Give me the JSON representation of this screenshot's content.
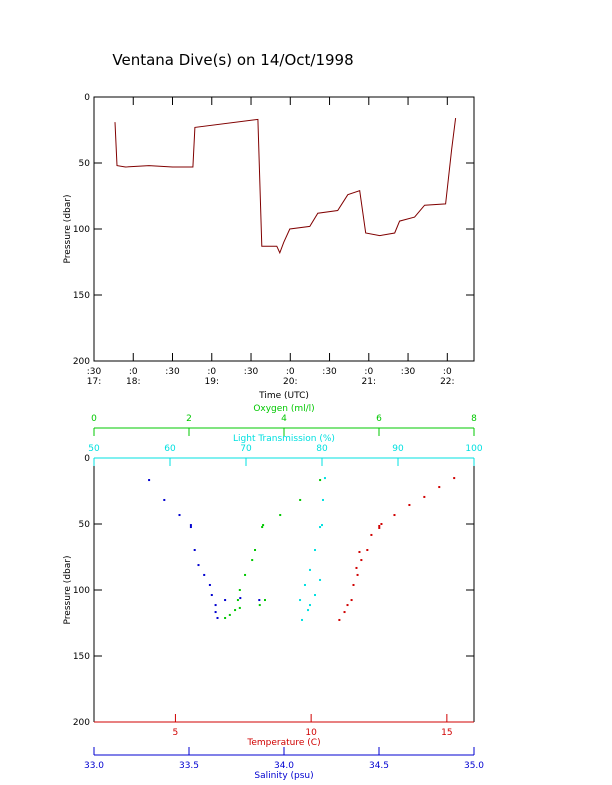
{
  "chart_data": [
    {
      "type": "line",
      "title": "Ventana Dive(s) on 14/Oct/1998",
      "xlabel": "Time (UTC)",
      "ylabel": "Pressure (dbar)",
      "color": "#800000",
      "y_inverted": true,
      "xlim": [
        17.5,
        22.34
      ],
      "xticks": [
        {
          "value": 17.5,
          "label": ":30\n17:"
        },
        {
          "value": 18,
          "label": ":0\n18:"
        },
        {
          "value": 18.5,
          "label": ":30"
        },
        {
          "value": 19,
          "label": ":0\n19:"
        },
        {
          "value": 19.5,
          "label": ":30"
        },
        {
          "value": 20,
          "label": ":0\n20:"
        },
        {
          "value": 20.5,
          "label": ":30"
        },
        {
          "value": 21,
          "label": ":0\n21:"
        },
        {
          "value": 21.5,
          "label": ":30"
        },
        {
          "value": 22,
          "label": ":0\n22:"
        }
      ],
      "ylim": [
        0,
        200
      ],
      "yticks": [
        0,
        50,
        100,
        150,
        200
      ],
      "x": [
        17.767,
        17.793,
        17.9,
        18.2,
        18.5,
        18.76,
        18.785,
        19.587,
        19.637,
        19.828,
        19.866,
        19.917,
        19.994,
        20.248,
        20.35,
        20.604,
        20.732,
        20.884,
        20.961,
        21.139,
        21.33,
        21.393,
        21.584,
        21.711,
        21.978,
        22.055,
        22.106
      ],
      "values": [
        19,
        52,
        53,
        52,
        53,
        53,
        23,
        17,
        113,
        113,
        118,
        110,
        100,
        98,
        88,
        86,
        74,
        71,
        103,
        105,
        103,
        94,
        91,
        82,
        81,
        40,
        16
      ]
    },
    {
      "type": "scatter",
      "ylabel": "Pressure (dbar)",
      "y_inverted": true,
      "ylim": [
        0,
        200
      ],
      "yticks": [
        0,
        50,
        100,
        150,
        200
      ],
      "x_axes": [
        {
          "label": "Oxygen (ml/l)",
          "color": "#00c800",
          "side": "top",
          "xlim": [
            0,
            8
          ],
          "xticks": [
            0,
            2,
            4,
            6,
            8
          ]
        },
        {
          "label": "Light Transmission (%)",
          "color": "#00e0e0",
          "side": "top",
          "xlim": [
            50,
            100
          ],
          "xticks": [
            50,
            60,
            70,
            80,
            90,
            100
          ]
        },
        {
          "label": "Temperature (C)",
          "color": "#d00000",
          "side": "bottom",
          "xlim": [
            2,
            16
          ],
          "xticks": [
            5,
            10,
            15
          ]
        },
        {
          "label": "Salinity (psu)",
          "color": "#0000d0",
          "side": "bottom",
          "xlim": [
            33,
            35
          ],
          "xticks": [
            {
              "value": 33,
              "label": "33.0"
            },
            33.5,
            {
              "value": 34,
              "label": "34.0"
            },
            34.5,
            {
              "value": 35,
              "label": "35.0"
            }
          ]
        }
      ],
      "series": [
        {
          "x_axis": 2,
          "color": "#d00000",
          "x": [
            15.27,
            14.72,
            14.17,
            13.62,
            13.07,
            12.59,
            12.51,
            12.51,
            12.22,
            12.07,
            11.85,
            11.71,
            11.56,
            11.49,
            11.34,
            11.23,
            11.04,
            11.78,
            11.67
          ],
          "values": [
            15.2,
            22,
            29.5,
            35.6,
            43.2,
            50,
            51.5,
            53,
            58.3,
            69.7,
            77.3,
            88.6,
            96.2,
            107.6,
            111.4,
            116.7,
            122.7,
            71.2,
            83.3
          ]
        },
        {
          "x_axis": 3,
          "color": "#0000d0",
          "x": [
            33.29,
            33.37,
            33.45,
            33.51,
            33.51,
            33.53,
            33.55,
            33.58,
            33.61,
            33.62,
            33.64,
            33.69,
            33.77,
            33.87,
            33.64,
            33.65
          ],
          "values": [
            16.7,
            31.8,
            43.2,
            50.8,
            52.3,
            69.7,
            81.1,
            88.6,
            96.2,
            103.8,
            111.4,
            107.6,
            106.1,
            107.6,
            116.7,
            121.2
          ]
        },
        {
          "x_axis": 0,
          "color": "#00c800",
          "x": [
            4.76,
            4.34,
            3.92,
            3.56,
            3.54,
            3.39,
            3.33,
            3.18,
            3.07,
            3.03,
            2.97,
            2.86,
            2.76,
            3.07,
            3.49,
            3.6
          ],
          "values": [
            16.7,
            31.8,
            43.2,
            50.8,
            52.3,
            69.7,
            77.3,
            88.6,
            100,
            107.6,
            115.2,
            118.9,
            121.2,
            113.6,
            111.4,
            107.6
          ]
        },
        {
          "x_axis": 1,
          "color": "#00e0e0",
          "x": [
            80.39,
            80.13,
            80.0,
            79.74,
            79.08,
            78.42,
            77.76,
            77.11,
            78.16,
            79.08,
            79.74,
            77.37,
            78.42
          ],
          "values": [
            15.2,
            31.8,
            50.8,
            52.3,
            69.7,
            84.8,
            96.2,
            107.6,
            115.2,
            103.8,
            92.4,
            122.7,
            111.4
          ]
        }
      ]
    }
  ]
}
